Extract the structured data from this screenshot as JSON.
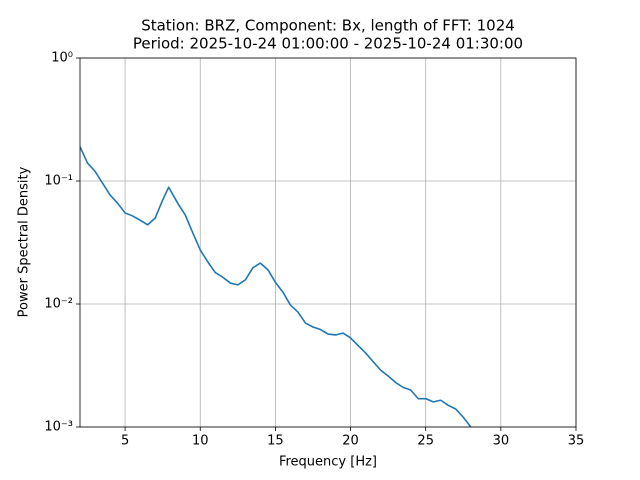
{
  "chart_data": {
    "type": "line",
    "title": "Station: BRZ, Component: Bx, length of FFT: 1024",
    "subtitle": "Period: 2025-10-24 01:00:00 - 2025-10-24 01:30:00",
    "x_label": "Frequency [Hz]",
    "y_label": "Power Spectral Density",
    "x": [
      2,
      2.5,
      3,
      3.5,
      4,
      4.5,
      5,
      5.5,
      6,
      6.5,
      7,
      7.5,
      7.9,
      8.5,
      9,
      9.5,
      10,
      10.5,
      11,
      11.5,
      12,
      12.5,
      13,
      13.5,
      14,
      14.5,
      15,
      15.5,
      16,
      16.5,
      17,
      17.5,
      18,
      18.5,
      19,
      19.5,
      20,
      20.5,
      21,
      21.5,
      22,
      22.5,
      23,
      23.5,
      24,
      24.5,
      25,
      25.5,
      26,
      26.5,
      27,
      27.5,
      28
    ],
    "series": [
      {
        "name": "PSD",
        "color": "#1f77b4",
        "values": [
          0.19,
          0.14,
          0.12,
          0.096,
          0.077,
          0.066,
          0.055,
          0.052,
          0.048,
          0.044,
          0.05,
          0.07,
          0.089,
          0.066,
          0.053,
          0.038,
          0.0275,
          0.022,
          0.018,
          0.0165,
          0.0148,
          0.0143,
          0.0157,
          0.0197,
          0.0215,
          0.019,
          0.015,
          0.0125,
          0.0098,
          0.0086,
          0.007,
          0.0065,
          0.0062,
          0.0057,
          0.0056,
          0.0058,
          0.0053,
          0.0046,
          0.004,
          0.0034,
          0.0029,
          0.0026,
          0.0023,
          0.0021,
          0.002,
          0.0017,
          0.0017,
          0.0016,
          0.00165,
          0.0015,
          0.0014,
          0.0012,
          0.001
        ]
      }
    ],
    "xlim": [
      2,
      35
    ],
    "xticks": [
      5,
      10,
      15,
      20,
      25,
      30,
      35
    ],
    "ylim": [
      0.001,
      1
    ],
    "y_scale": "log",
    "yticks": [
      {
        "value": 0.001,
        "label": "10⁻³"
      },
      {
        "value": 0.01,
        "label": "10⁻²"
      },
      {
        "value": 0.1,
        "label": "10⁻¹"
      },
      {
        "value": 1,
        "label": "10⁰"
      }
    ],
    "grid": true
  }
}
